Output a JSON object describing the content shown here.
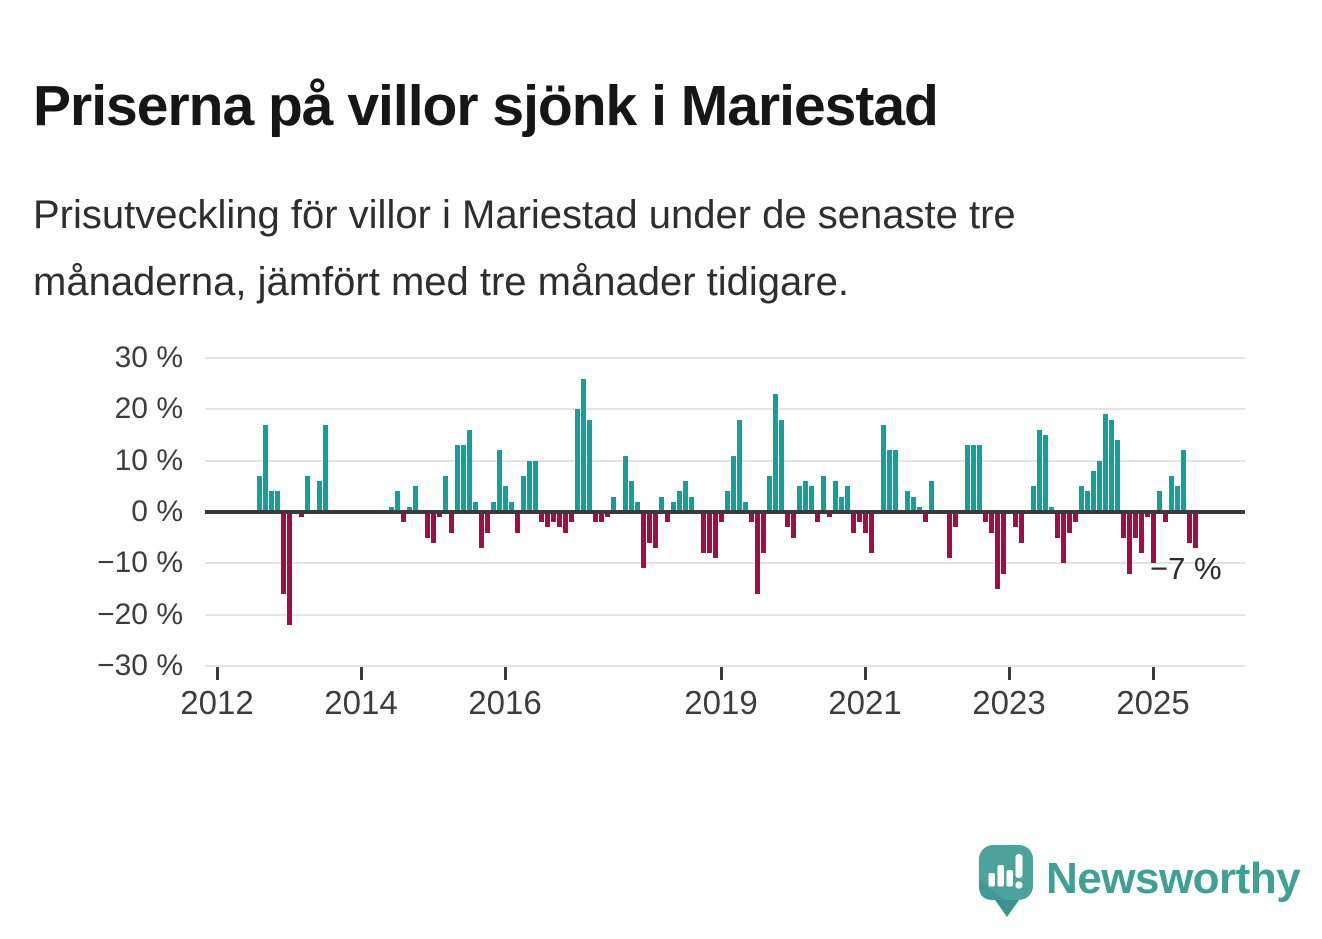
{
  "header": {
    "title": "Priserna på villor sjönk i Mariestad",
    "subtitle_line1": "Prisutveckling för villor i Mariestad under de senaste tre",
    "subtitle_line2": "månaderna, jämfört med tre månader tidigare."
  },
  "footer": {
    "logo_text": "Newsworthy",
    "logo_icon": "newsworthy-speech-bubble-bar-chart-icon"
  },
  "colors": {
    "positive_bar": "#12a09b",
    "negative_bar": "#a30d45",
    "zero_line": "#3b3b3b",
    "gridline": "#e4e4e4",
    "axis_text": "#3d3d3d",
    "title_text": "#161616",
    "logo_teal": "#3fa096",
    "logo_icon_teal": "#4ba39c",
    "logo_icon_dark_teal": "#37938c"
  },
  "chart_data": {
    "type": "bar",
    "unit": "%",
    "title": "",
    "xlabel": "",
    "ylabel": "",
    "ylim": [
      -30,
      30
    ],
    "grid": true,
    "legend": false,
    "annotation": {
      "text": "−7 %",
      "target": "2025-08"
    },
    "y_ticks": [
      {
        "label": "30 %",
        "value": 30
      },
      {
        "label": "20 %",
        "value": 20
      },
      {
        "label": "10 %",
        "value": 10
      },
      {
        "label": "0 %",
        "value": 0
      },
      {
        "label": "−10 %",
        "value": -10
      },
      {
        "label": "−20 %",
        "value": -20
      },
      {
        "label": "−30 %",
        "value": -30
      }
    ],
    "x_ticks": [
      {
        "label": "2012",
        "year": 2012
      },
      {
        "label": "2014",
        "year": 2014
      },
      {
        "label": "2016",
        "year": 2016
      },
      {
        "label": "2019",
        "year": 2019
      },
      {
        "label": "2021",
        "year": 2021
      },
      {
        "label": "2023",
        "year": 2023
      },
      {
        "label": "2025",
        "year": 2025
      }
    ],
    "x": [
      "2012-08",
      "2012-09",
      "2012-10",
      "2012-11",
      "2012-12",
      "2013-01",
      "2013-03",
      "2013-04",
      "2013-06",
      "2013-07",
      "2014-06",
      "2014-07",
      "2014-08",
      "2014-09",
      "2014-10",
      "2014-12",
      "2015-01",
      "2015-02",
      "2015-03",
      "2015-04",
      "2015-05",
      "2015-06",
      "2015-07",
      "2015-08",
      "2015-09",
      "2015-10",
      "2015-11",
      "2015-12",
      "2016-01",
      "2016-02",
      "2016-03",
      "2016-04",
      "2016-05",
      "2016-06",
      "2016-07",
      "2016-08",
      "2016-09",
      "2016-10",
      "2016-11",
      "2016-12",
      "2017-01",
      "2017-02",
      "2017-03",
      "2017-04",
      "2017-05",
      "2017-06",
      "2017-07",
      "2017-09",
      "2017-10",
      "2017-11",
      "2017-12",
      "2018-01",
      "2018-02",
      "2018-03",
      "2018-04",
      "2018-05",
      "2018-06",
      "2018-07",
      "2018-08",
      "2018-10",
      "2018-11",
      "2018-12",
      "2019-01",
      "2019-02",
      "2019-03",
      "2019-04",
      "2019-05",
      "2019-06",
      "2019-07",
      "2019-08",
      "2019-09",
      "2019-10",
      "2019-11",
      "2019-12",
      "2020-01",
      "2020-02",
      "2020-03",
      "2020-04",
      "2020-05",
      "2020-06",
      "2020-07",
      "2020-08",
      "2020-09",
      "2020-10",
      "2020-11",
      "2020-12",
      "2021-01",
      "2021-02",
      "2021-04",
      "2021-05",
      "2021-06",
      "2021-08",
      "2021-09",
      "2021-10",
      "2021-11",
      "2021-12",
      "2022-03",
      "2022-04",
      "2022-06",
      "2022-07",
      "2022-08",
      "2022-09",
      "2022-10",
      "2022-11",
      "2022-12",
      "2023-02",
      "2023-03",
      "2023-05",
      "2023-06",
      "2023-07",
      "2023-08",
      "2023-09",
      "2023-10",
      "2023-11",
      "2023-12",
      "2024-01",
      "2024-02",
      "2024-03",
      "2024-04",
      "2024-05",
      "2024-06",
      "2024-07",
      "2024-08",
      "2024-09",
      "2024-10",
      "2024-11",
      "2024-12",
      "2025-01",
      "2025-02",
      "2025-03",
      "2025-04",
      "2025-05",
      "2025-06",
      "2025-07",
      "2025-08"
    ],
    "values": [
      7,
      17,
      4,
      4,
      -16,
      -22,
      -1,
      7,
      6,
      17,
      1,
      4,
      -2,
      1,
      5,
      -5,
      -6,
      -1,
      7,
      -4,
      13,
      13,
      16,
      2,
      -7,
      -4,
      2,
      12,
      5,
      2,
      -4,
      7,
      10,
      10,
      -2,
      -3,
      -2,
      -3,
      -4,
      -2,
      20,
      26,
      18,
      -2,
      -2,
      -1,
      3,
      11,
      6,
      2,
      -11,
      -6,
      -7,
      3,
      -2,
      2,
      4,
      6,
      3,
      -8,
      -8,
      -9,
      -2,
      4,
      11,
      18,
      2,
      -2,
      -16,
      -8,
      7,
      23,
      18,
      -3,
      -5,
      5,
      6,
      5,
      -2,
      7,
      -1,
      6,
      3,
      5,
      -4,
      -2,
      -4,
      -8,
      17,
      12,
      12,
      4,
      3,
      1,
      -2,
      6,
      -9,
      -3,
      13,
      13,
      13,
      -2,
      -4,
      -15,
      -12,
      -3,
      -6,
      5,
      16,
      15,
      1,
      -5,
      -10,
      -4,
      -2,
      5,
      4,
      8,
      10,
      19,
      18,
      14,
      -5,
      -12,
      -5,
      -8,
      -1,
      -10,
      4,
      -2,
      7,
      5,
      12,
      -6,
      -7
    ]
  }
}
